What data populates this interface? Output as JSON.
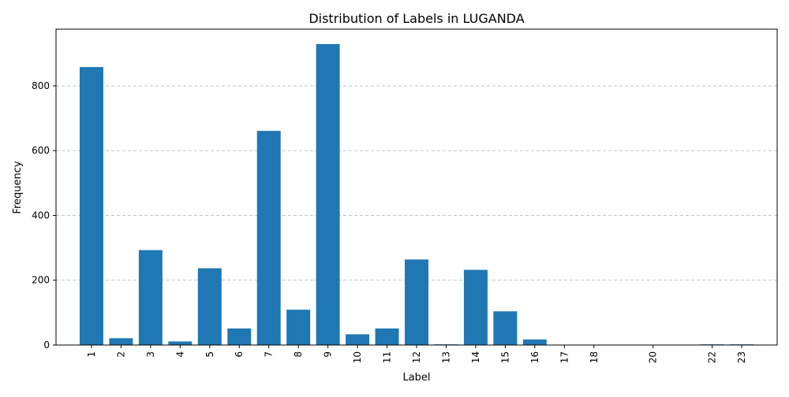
{
  "chart_data": {
    "type": "bar",
    "title": "Distribution of Labels in LUGANDA",
    "xlabel": "Label",
    "ylabel": "Frequency",
    "x": [
      1,
      2,
      3,
      4,
      5,
      6,
      7,
      8,
      9,
      10,
      11,
      12,
      13,
      14,
      15,
      16,
      17,
      18,
      20,
      22,
      23
    ],
    "values": [
      858,
      21,
      293,
      11,
      237,
      51,
      661,
      109,
      929,
      33,
      51,
      264,
      2,
      232,
      104,
      17,
      0,
      0,
      0,
      2,
      2
    ],
    "xlim": [
      -0.2,
      24.2
    ],
    "ylim": [
      0,
      975
    ],
    "yticks": [
      0,
      200,
      400,
      600,
      800
    ],
    "grid": "y-dashed",
    "bar_color": "#1f77b4"
  }
}
